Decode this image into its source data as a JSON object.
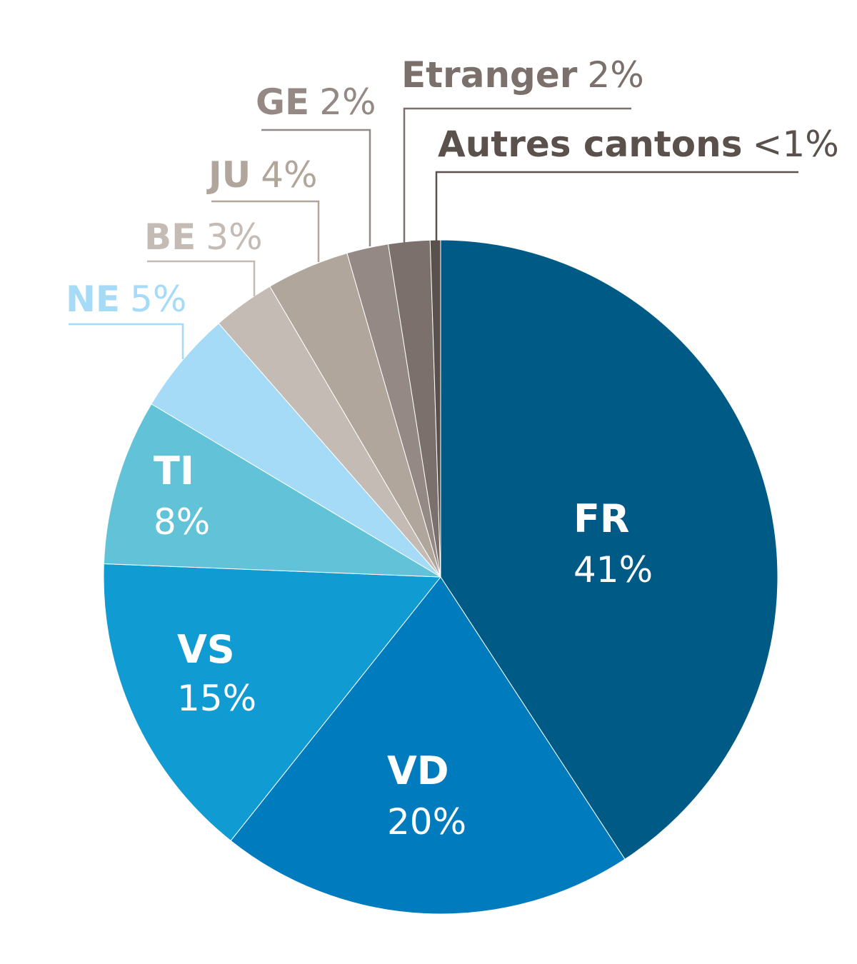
{
  "chart_data": {
    "type": "pie",
    "title": "",
    "slices": [
      {
        "label": "FR",
        "value_text": "41%",
        "value": 41,
        "color": "#005a86"
      },
      {
        "label": "VD",
        "value_text": "20%",
        "value": 20,
        "color": "#007bbd"
      },
      {
        "label": "VS",
        "value_text": "15%",
        "value": 15,
        "color": "#109bd3"
      },
      {
        "label": "TI",
        "value_text": "8%",
        "value": 8,
        "color": "#62c3d8"
      },
      {
        "label": "NE",
        "value_text": "5%",
        "value": 5,
        "color": "#a5dbf6"
      },
      {
        "label": "BE",
        "value_text": "3%",
        "value": 3,
        "color": "#c4bbb5"
      },
      {
        "label": "JU",
        "value_text": "4%",
        "value": 4,
        "color": "#b1a69b"
      },
      {
        "label": "GE",
        "value_text": "2%",
        "value": 2,
        "color": "#948984"
      },
      {
        "label": "Etranger",
        "value_text": "2%",
        "value": 2,
        "color": "#7b706b"
      },
      {
        "label": "Autres cantons",
        "value_text": "<1%",
        "value": 0.5,
        "color": "#5a504c"
      }
    ]
  }
}
